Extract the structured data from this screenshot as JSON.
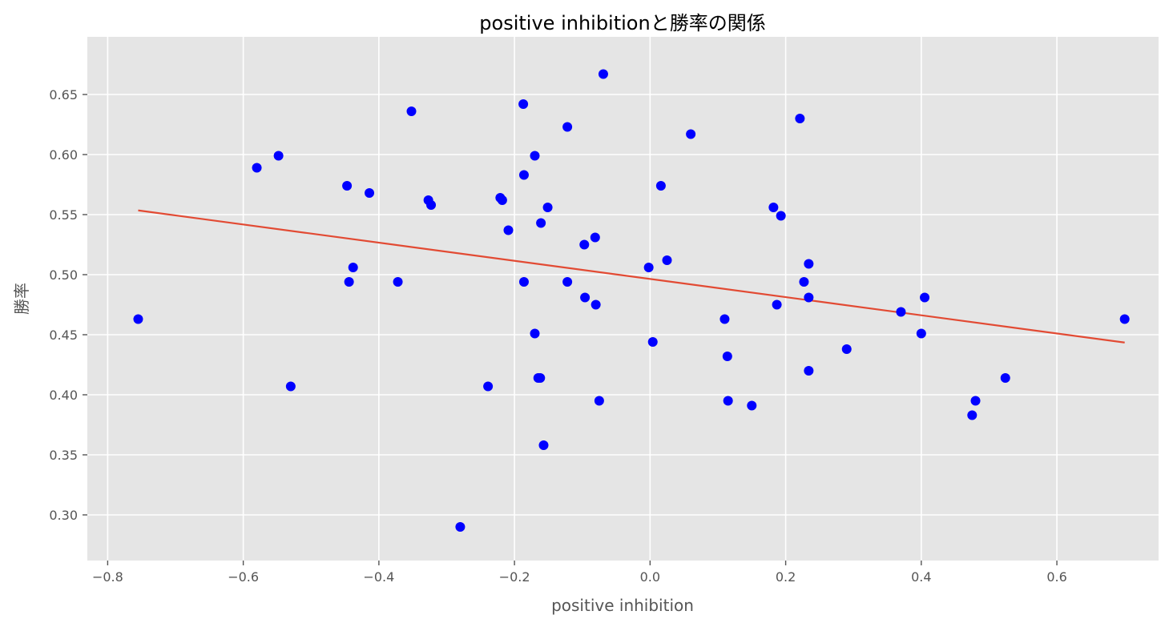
{
  "chart_data": {
    "type": "scatter",
    "title": "positive inhibitionと勝率の関係",
    "xlabel": "positive inhibition",
    "ylabel": "勝率",
    "xlim": [
      -0.83,
      0.75
    ],
    "ylim": [
      0.262,
      0.698
    ],
    "xticks": [
      -0.8,
      -0.6,
      -0.4,
      -0.2,
      0.0,
      0.2,
      0.4,
      0.6
    ],
    "xtick_labels": [
      "−0.8",
      "−0.6",
      "−0.4",
      "−0.2",
      "0.0",
      "0.2",
      "0.4",
      "0.6"
    ],
    "yticks": [
      0.3,
      0.35,
      0.4,
      0.45,
      0.5,
      0.55,
      0.6,
      0.65
    ],
    "ytick_labels": [
      "0.30",
      "0.35",
      "0.40",
      "0.45",
      "0.50",
      "0.55",
      "0.60",
      "0.65"
    ],
    "grid": true,
    "background": "#e5e5e5",
    "grid_color": "#ffffff",
    "point_color": "#0000ff",
    "line_color": "#e24a33",
    "points": [
      [
        -0.755,
        0.463
      ],
      [
        -0.58,
        0.589
      ],
      [
        -0.548,
        0.599
      ],
      [
        -0.53,
        0.407
      ],
      [
        -0.447,
        0.574
      ],
      [
        -0.444,
        0.494
      ],
      [
        -0.438,
        0.506
      ],
      [
        -0.414,
        0.568
      ],
      [
        -0.372,
        0.494
      ],
      [
        -0.352,
        0.636
      ],
      [
        -0.327,
        0.562
      ],
      [
        -0.323,
        0.558
      ],
      [
        -0.28,
        0.29
      ],
      [
        -0.239,
        0.407
      ],
      [
        -0.221,
        0.564
      ],
      [
        -0.218,
        0.562
      ],
      [
        -0.209,
        0.537
      ],
      [
        -0.187,
        0.642
      ],
      [
        -0.186,
        0.583
      ],
      [
        -0.186,
        0.494
      ],
      [
        -0.17,
        0.599
      ],
      [
        -0.17,
        0.451
      ],
      [
        -0.165,
        0.414
      ],
      [
        -0.162,
        0.414
      ],
      [
        -0.161,
        0.543
      ],
      [
        -0.157,
        0.358
      ],
      [
        -0.151,
        0.556
      ],
      [
        -0.122,
        0.623
      ],
      [
        -0.122,
        0.494
      ],
      [
        -0.097,
        0.525
      ],
      [
        -0.096,
        0.481
      ],
      [
        -0.081,
        0.531
      ],
      [
        -0.08,
        0.475
      ],
      [
        -0.075,
        0.395
      ],
      [
        -0.069,
        0.667
      ],
      [
        -0.002,
        0.506
      ],
      [
        0.004,
        0.444
      ],
      [
        0.016,
        0.574
      ],
      [
        0.025,
        0.512
      ],
      [
        0.06,
        0.617
      ],
      [
        0.11,
        0.463
      ],
      [
        0.114,
        0.432
      ],
      [
        0.115,
        0.395
      ],
      [
        0.15,
        0.391
      ],
      [
        0.182,
        0.556
      ],
      [
        0.187,
        0.475
      ],
      [
        0.193,
        0.549
      ],
      [
        0.221,
        0.63
      ],
      [
        0.227,
        0.494
      ],
      [
        0.234,
        0.509
      ],
      [
        0.234,
        0.481
      ],
      [
        0.234,
        0.42
      ],
      [
        0.29,
        0.438
      ],
      [
        0.37,
        0.469
      ],
      [
        0.4,
        0.451
      ],
      [
        0.405,
        0.481
      ],
      [
        0.475,
        0.383
      ],
      [
        0.48,
        0.395
      ],
      [
        0.524,
        0.414
      ],
      [
        0.7,
        0.463
      ]
    ],
    "fit_line": {
      "x": [
        -0.755,
        0.7
      ],
      "y": [
        0.5535,
        0.4435
      ]
    }
  }
}
